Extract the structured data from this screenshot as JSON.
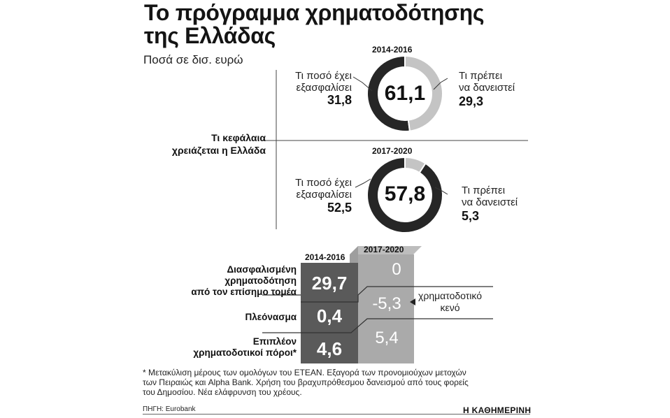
{
  "title_line1": "Το πρόγραμμα χρηματοδότησης",
  "title_line2": "της Ελλάδας",
  "subtitle": "Ποσά σε δισ. ευρώ",
  "section_label_line1": "Τι κεφάλαια",
  "section_label_line2": "χρειάζεται η Ελλάδα",
  "left_label_line1": "Τι ποσό έχει",
  "left_label_line2": "εξασφαλίσει",
  "right_label_line1": "Τι πρέπει",
  "right_label_line2": "να δανειστεί",
  "gap_label_line1": "χρηματοδοτικό",
  "gap_label_line2": "κενό",
  "footnote_line1": "* Μετακύλιση μέρους των ομολόγων του ΕΤΕΑΝ. Εξαγορά των προνομιούχων μετοχών",
  "footnote_line2": "των Πειραιώς και Alpha Bank. Χρήση του βραχυπρόθεσμου δανεισμού από τους φορείς",
  "footnote_line3": "του Δημοσίου. Νέα ελάφρυνση του χρέους.",
  "source": "ΠΗΓΗ: Eurobank",
  "brand": "Η ΚΑΘΗΜΕΡΙΝΗ",
  "colors": {
    "dark": "#262626",
    "light": "#c4c4c4",
    "bar_dark": "#5a5a5a",
    "bar_light": "#aaaaaa",
    "rule": "#444444"
  },
  "chart_data": [
    {
      "type": "pie",
      "period": "2014-2016",
      "total": "61,1",
      "slices": [
        {
          "label": "Τι ποσό έχει εξασφαλίσει",
          "value": 31.8,
          "display": "31,8"
        },
        {
          "label": "Τι πρέπει να δανειστεί",
          "value": 29.3,
          "display": "29,3"
        }
      ]
    },
    {
      "type": "pie",
      "period": "2017-2020",
      "total": "57,8",
      "slices": [
        {
          "label": "Τι ποσό έχει εξασφαλίσει",
          "value": 52.5,
          "display": "52,5"
        },
        {
          "label": "Τι πρέπει να δανειστεί",
          "value": 5.3,
          "display": "5,3"
        }
      ]
    },
    {
      "type": "table",
      "columns": [
        "2014-2016",
        "2017-2020"
      ],
      "rows": [
        {
          "label_lines": [
            "Διασφαλισμένη",
            "χρηματοδότηση",
            "από τον επίσημο τομέα"
          ],
          "values": [
            "29,7",
            "0"
          ]
        },
        {
          "label_lines": [
            "Πλεόνασμα"
          ],
          "values": [
            "0,4",
            "-5,3"
          ]
        },
        {
          "label_lines": [
            "Επιπλέον",
            "χρηματοδοτικοί πόροι*"
          ],
          "values": [
            "4,6",
            "5,4"
          ]
        }
      ]
    }
  ]
}
